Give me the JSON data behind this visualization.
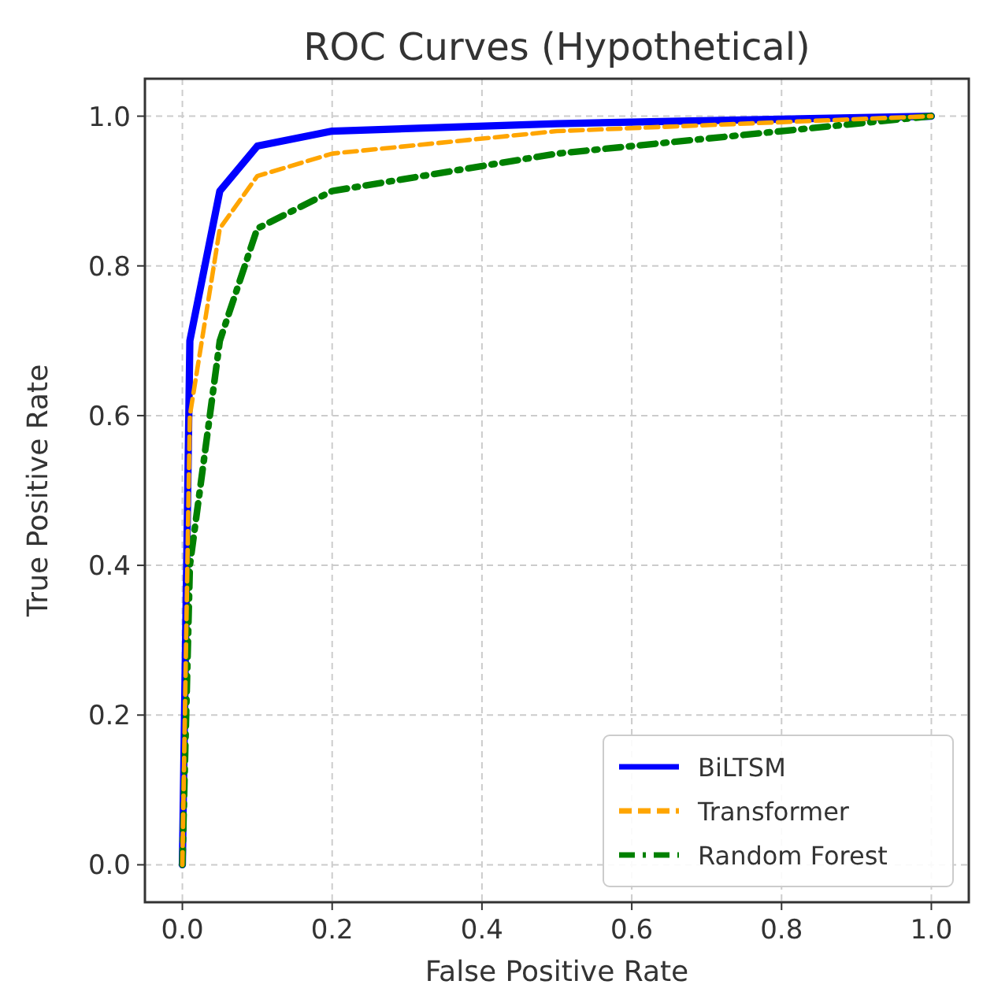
{
  "chart_data": {
    "type": "line",
    "title": "ROC Curves (Hypothetical)",
    "xlabel": "False Positive Rate",
    "ylabel": "True Positive Rate",
    "xlim": [
      -0.05,
      1.05
    ],
    "ylim": [
      -0.05,
      1.05
    ],
    "xticks": [
      {
        "value": 0,
        "label": "0.0"
      },
      0.2,
      0.4,
      0.6,
      0.8,
      {
        "value": 1,
        "label": "1.0"
      }
    ],
    "yticks": [
      {
        "value": 0,
        "label": "0.0"
      },
      0.2,
      0.4,
      0.6,
      0.8,
      {
        "value": 1,
        "label": "1.0"
      }
    ],
    "grid": true,
    "legend": "bottom right",
    "series": [
      {
        "name": "BiLTSM",
        "color": "#0000ff",
        "line_style": "solid",
        "x": [
          0,
          0.01,
          0.05,
          0.1,
          0.2,
          0.5,
          1.0
        ],
        "values": [
          0,
          0.7,
          0.9,
          0.96,
          0.98,
          0.99,
          1.0
        ]
      },
      {
        "name": "Transformer",
        "color": "#ffa500",
        "line_style": "dashed",
        "x": [
          0,
          0.01,
          0.05,
          0.1,
          0.2,
          0.5,
          1.0
        ],
        "values": [
          0,
          0.6,
          0.85,
          0.92,
          0.95,
          0.98,
          1.0
        ]
      },
      {
        "name": "Random Forest",
        "color": "#008000",
        "line_style": "dashdot",
        "x": [
          0,
          0.01,
          0.05,
          0.1,
          0.2,
          0.5,
          1.0
        ],
        "values": [
          0,
          0.4,
          0.7,
          0.85,
          0.9,
          0.95,
          1.0
        ]
      }
    ]
  }
}
